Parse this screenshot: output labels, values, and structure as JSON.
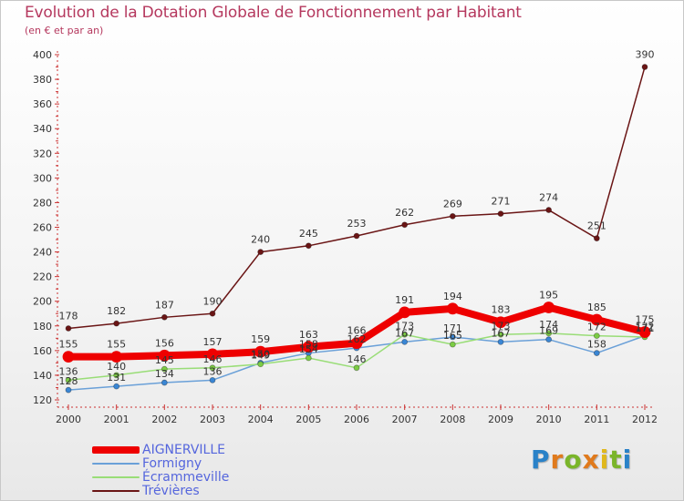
{
  "title": "Evolution de la Dotation Globale de Fonctionnement par Habitant",
  "subtitle": "(en € et par an)",
  "logo": {
    "letters": [
      "P",
      "r",
      "o",
      "x",
      "i",
      "t",
      "i"
    ]
  },
  "chart_data": {
    "type": "line",
    "title": "Evolution de la Dotation Globale de Fonctionnement par Habitant",
    "subtitle": "(en € et par an)",
    "xlabel": "",
    "ylabel": "",
    "x": [
      "2000",
      "2001",
      "2002",
      "2003",
      "2004",
      "2005",
      "2006",
      "2007",
      "2008",
      "2009",
      "2010",
      "2011",
      "2012"
    ],
    "ylim": [
      120,
      400
    ],
    "yticks": [
      120,
      140,
      160,
      180,
      200,
      220,
      240,
      260,
      280,
      300,
      320,
      340,
      360,
      380,
      400
    ],
    "grid": false,
    "legend_position": "bottom-left",
    "series": [
      {
        "name": "Trévières",
        "color": "#6a1515",
        "marker_color": "#6a1515",
        "values": [
          178,
          182,
          187,
          190,
          240,
          245,
          253,
          262,
          269,
          271,
          274,
          251,
          390
        ],
        "labels": [
          "178",
          "182",
          "187",
          "190",
          "240",
          "245",
          "253",
          "262",
          "269",
          "271",
          "274",
          "251",
          "390"
        ]
      },
      {
        "name": "Formigny",
        "color": "#6aa0d8",
        "marker_color": "#3a86d4",
        "values": [
          128,
          131,
          134,
          136,
          150,
          158,
          162,
          167,
          171,
          167,
          169,
          158,
          172
        ],
        "labels": [
          "128",
          "131",
          "134",
          "136",
          "150",
          "158",
          "162",
          "167",
          "171",
          "167",
          "169",
          "158",
          "172"
        ]
      },
      {
        "name": "Écrammeville",
        "color": "#99dd77",
        "marker_color": "#7ccc44",
        "values": [
          136,
          140,
          145,
          146,
          149,
          154,
          146,
          173,
          165,
          173,
          174,
          172,
          171
        ],
        "labels": [
          "136",
          "140",
          "145",
          "146",
          "149",
          "154",
          "146",
          "173",
          "165",
          "173",
          "174",
          "172",
          "171"
        ]
      },
      {
        "name": "AIGNERVILLE",
        "color": "#ee0000",
        "marker_color": "#ee0000",
        "values": [
          155,
          155,
          156,
          157,
          159,
          163,
          166,
          191,
          194,
          183,
          195,
          185,
          175
        ],
        "labels": [
          "155",
          "155",
          "156",
          "157",
          "159",
          "163",
          "166",
          "191",
          "194",
          "183",
          "195",
          "185",
          "175"
        ]
      }
    ],
    "legend": [
      "AIGNERVILLE",
      "Formigny",
      "Écrammeville",
      "Trévières"
    ]
  }
}
